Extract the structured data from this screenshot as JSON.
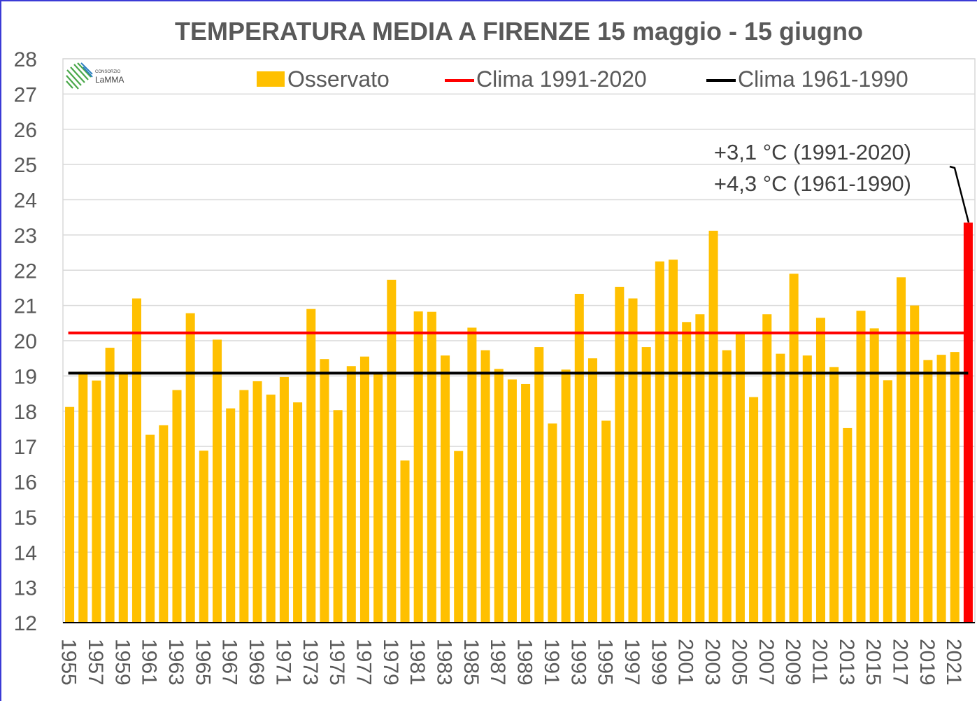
{
  "chart_data": {
    "type": "bar",
    "title": "TEMPERATURA MEDIA A FIRENZE 15 maggio - 15 giugno",
    "xlabel": "",
    "ylabel": "",
    "ylim": [
      12,
      28
    ],
    "yticks": [
      12,
      13,
      14,
      15,
      16,
      17,
      18,
      19,
      20,
      21,
      22,
      23,
      24,
      25,
      26,
      27,
      28
    ],
    "grid": true,
    "legend_position": "top",
    "logo_text": [
      "CONSORZIO",
      "LaMMA"
    ],
    "colors": {
      "observed": "#ffc000",
      "last_year": "#ff0000",
      "clima_1991_2020": "#ff0000",
      "clima_1961_1990": "#000000",
      "grid": "#d9d9d9",
      "text": "#595959"
    },
    "categories": [
      "1955",
      "1956",
      "1957",
      "1958",
      "1959",
      "1960",
      "1961",
      "1962",
      "1963",
      "1964",
      "1965",
      "1966",
      "1967",
      "1968",
      "1969",
      "1970",
      "1971",
      "1972",
      "1973",
      "1974",
      "1975",
      "1976",
      "1977",
      "1978",
      "1979",
      "1980",
      "1981",
      "1982",
      "1983",
      "1984",
      "1985",
      "1986",
      "1987",
      "1988",
      "1989",
      "1990",
      "1991",
      "1992",
      "1993",
      "1994",
      "1995",
      "1996",
      "1997",
      "1998",
      "1999",
      "2000",
      "2001",
      "2002",
      "2003",
      "2004",
      "2005",
      "2006",
      "2007",
      "2008",
      "2009",
      "2010",
      "2011",
      "2012",
      "2013",
      "2014",
      "2015",
      "2016",
      "2017",
      "2018",
      "2019",
      "2020",
      "2021",
      "2022"
    ],
    "xtick_labels": [
      "1955",
      "",
      "1957",
      "",
      "1959",
      "",
      "1961",
      "",
      "1963",
      "",
      "1965",
      "",
      "1967",
      "",
      "1969",
      "",
      "1971",
      "",
      "1973",
      "",
      "1975",
      "",
      "1977",
      "",
      "1979",
      "",
      "1981",
      "",
      "1983",
      "",
      "1985",
      "",
      "1987",
      "",
      "1989",
      "",
      "1991",
      "",
      "1993",
      "",
      "1995",
      "",
      "1997",
      "",
      "1999",
      "",
      "2001",
      "",
      "2003",
      "",
      "2005",
      "",
      "2007",
      "",
      "2009",
      "",
      "2011",
      "",
      "2013",
      "",
      "2015",
      "",
      "2017",
      "",
      "2019",
      "",
      "2021",
      ""
    ],
    "series": [
      {
        "name": "Osservato",
        "values": [
          18.12,
          19.12,
          18.87,
          19.8,
          19.1,
          21.2,
          17.33,
          17.6,
          18.6,
          20.78,
          16.88,
          20.03,
          18.08,
          18.6,
          18.85,
          18.47,
          18.97,
          18.25,
          20.9,
          19.48,
          18.03,
          19.28,
          19.55,
          19.1,
          21.73,
          16.6,
          20.83,
          20.82,
          19.58,
          16.87,
          20.37,
          19.73,
          19.2,
          18.9,
          18.77,
          19.82,
          17.65,
          19.18,
          21.33,
          19.5,
          17.73,
          21.53,
          21.2,
          19.82,
          22.25,
          22.3,
          20.53,
          20.75,
          23.12,
          19.73,
          20.2,
          18.4,
          20.75,
          19.63,
          21.9,
          19.58,
          20.65,
          19.25,
          17.52,
          20.85,
          20.35,
          18.88,
          21.8,
          21.0,
          19.45,
          19.6,
          19.68,
          23.35
        ]
      },
      {
        "name": "Clima 1991-2020",
        "value": 20.22
      },
      {
        "name": "Clima 1961-1990",
        "value": 19.08
      }
    ],
    "annotations": [
      "+3,1 °C (1991-2020)",
      "+4,3 °C (1961-1990)"
    ]
  }
}
